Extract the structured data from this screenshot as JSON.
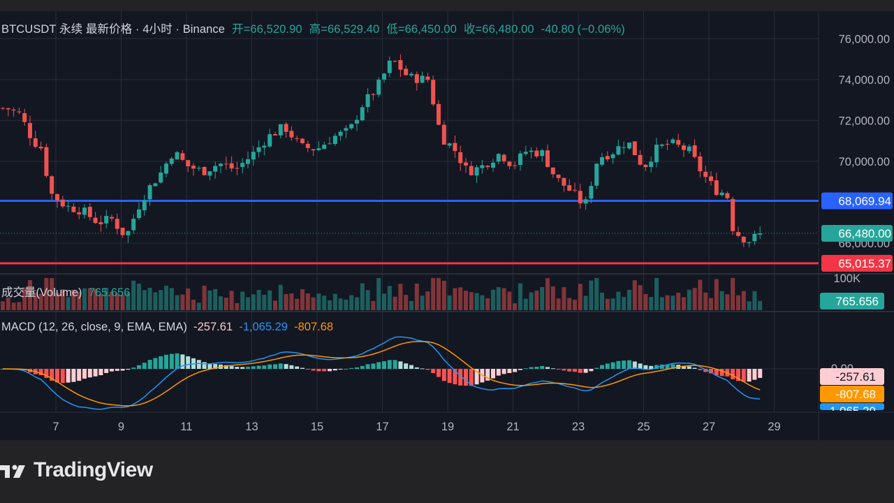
{
  "header": {
    "symbol": "BTCUSDT 永续 最新价格 · 4小时 · Binance",
    "open": "开=66,520.90",
    "high": "高=66,529.40",
    "low": "低=66,450.00",
    "close": "收=66,480.00",
    "change": "-40.80 (−0.06%)"
  },
  "volume_header": {
    "label": "成交量(Volume)",
    "value": "765.656"
  },
  "macd_header": {
    "label": "MACD (12, 26, close, 9, EMA, EMA)",
    "hist": "-257.61",
    "macd": "-1,065.29",
    "signal": "-807.68"
  },
  "brand": {
    "name": "TradingView"
  },
  "colors": {
    "up": "#26a69a",
    "down": "#ef5350",
    "blue_line": "#2962ff",
    "red_line": "#f23645",
    "macd": "#2196f3",
    "signal": "#ff9800",
    "bg": "#131722"
  },
  "chart_data": [
    {
      "type": "candlestick",
      "title": "BTCUSDT 永续 最新价格 · 4小时 · Binance",
      "x_ticks": [
        "7",
        "9",
        "11",
        "13",
        "15",
        "17",
        "19",
        "21",
        "23",
        "25",
        "27",
        "29"
      ],
      "y_ticks": [
        "76,000.00",
        "74,000.00",
        "72,000.00",
        "70,000.00",
        "66,000.00"
      ],
      "ylim": [
        64500,
        77000
      ],
      "horizontal_lines": [
        {
          "value": 68069.94,
          "label": "68,069.94",
          "color": "#2962ff"
        },
        {
          "value": 65015.37,
          "label": "65,015.37",
          "color": "#f23645"
        }
      ],
      "last_price": {
        "value": 66480.0,
        "label": "66,480.00"
      },
      "anchors": [
        {
          "day": 5.5,
          "close": 72600
        },
        {
          "day": 5.9,
          "close": 72300
        },
        {
          "day": 6.3,
          "close": 71000
        },
        {
          "day": 6.6,
          "close": 70600
        },
        {
          "day": 6.8,
          "close": 68500
        },
        {
          "day": 7.3,
          "close": 67800
        },
        {
          "day": 7.8,
          "close": 67600
        },
        {
          "day": 8.3,
          "close": 67000
        },
        {
          "day": 8.7,
          "close": 67200
        },
        {
          "day": 9.15,
          "close": 66300
        },
        {
          "day": 9.5,
          "close": 67700
        },
        {
          "day": 9.8,
          "close": 68600
        },
        {
          "day": 10.2,
          "close": 69400
        },
        {
          "day": 10.6,
          "close": 70500
        },
        {
          "day": 11.0,
          "close": 69800
        },
        {
          "day": 11.5,
          "close": 69500
        },
        {
          "day": 12.0,
          "close": 69900
        },
        {
          "day": 12.5,
          "close": 69600
        },
        {
          "day": 13.0,
          "close": 70300
        },
        {
          "day": 13.5,
          "close": 71200
        },
        {
          "day": 14.0,
          "close": 71700
        },
        {
          "day": 14.5,
          "close": 70700
        },
        {
          "day": 15.0,
          "close": 70600
        },
        {
          "day": 15.5,
          "close": 71200
        },
        {
          "day": 16.0,
          "close": 71500
        },
        {
          "day": 16.4,
          "close": 72800
        },
        {
          "day": 16.8,
          "close": 73500
        },
        {
          "day": 17.3,
          "close": 75000
        },
        {
          "day": 17.8,
          "close": 74100
        },
        {
          "day": 18.4,
          "close": 74000
        },
        {
          "day": 18.8,
          "close": 71200
        },
        {
          "day": 19.2,
          "close": 70600
        },
        {
          "day": 19.6,
          "close": 69500
        },
        {
          "day": 20.0,
          "close": 69700
        },
        {
          "day": 20.6,
          "close": 70400
        },
        {
          "day": 21.0,
          "close": 69800
        },
        {
          "day": 21.4,
          "close": 70500
        },
        {
          "day": 21.9,
          "close": 70400
        },
        {
          "day": 22.3,
          "close": 69200
        },
        {
          "day": 22.8,
          "close": 68500
        },
        {
          "day": 23.2,
          "close": 67800
        },
        {
          "day": 23.6,
          "close": 70200
        },
        {
          "day": 24.0,
          "close": 70400
        },
        {
          "day": 24.5,
          "close": 71000
        },
        {
          "day": 25.0,
          "close": 69700
        },
        {
          "day": 25.4,
          "close": 70600
        },
        {
          "day": 25.8,
          "close": 70900
        },
        {
          "day": 26.4,
          "close": 70500
        },
        {
          "day": 26.8,
          "close": 69400
        },
        {
          "day": 27.2,
          "close": 68600
        },
        {
          "day": 27.55,
          "close": 68400
        },
        {
          "day": 27.75,
          "close": 66600
        },
        {
          "day": 28.2,
          "close": 66100
        },
        {
          "day": 28.6,
          "close": 66480
        }
      ]
    },
    {
      "type": "bar",
      "title": "成交量(Volume)",
      "y_ticks": [
        "100K"
      ],
      "last_value": "765.656"
    },
    {
      "type": "line",
      "title": "MACD (12, 26, close, 9, EMA, EMA)",
      "y_ticks": [
        "0.00"
      ],
      "series": [
        {
          "name": "MACD",
          "color": "#2196f3",
          "last_label": "-1,065.29"
        },
        {
          "name": "Signal",
          "color": "#ff9800",
          "last_label": "-807.68"
        },
        {
          "name": "Histogram",
          "last_label": "-257.61"
        }
      ]
    }
  ]
}
